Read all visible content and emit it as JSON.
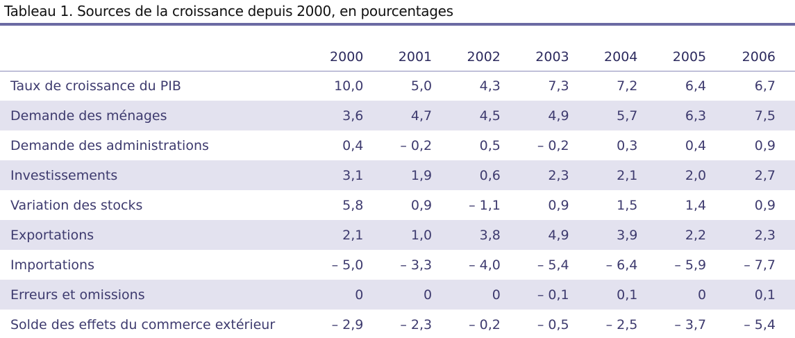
{
  "title": "Tableau 1. Sources de la croissance depuis 2000, en pourcentages",
  "columns": [
    "2000",
    "2001",
    "2002",
    "2003",
    "2004",
    "2005",
    "2006"
  ],
  "rows": [
    {
      "label": "Taux de croissance du PIB",
      "values": [
        "10,0",
        "5,0",
        "4,3",
        "7,3",
        "7,2",
        "6,4",
        "6,7"
      ]
    },
    {
      "label": "Demande des ménages",
      "values": [
        "3,6",
        "4,7",
        "4,5",
        "4,9",
        "5,7",
        "6,3",
        "7,5"
      ]
    },
    {
      "label": "Demande des administrations",
      "values": [
        "0,4",
        "– 0,2",
        "0,5",
        "– 0,2",
        "0,3",
        "0,4",
        "0,9"
      ]
    },
    {
      "label": "Investissements",
      "values": [
        "3,1",
        "1,9",
        "0,6",
        "2,3",
        "2,1",
        "2,0",
        "2,7"
      ]
    },
    {
      "label": "Variation des stocks",
      "values": [
        "5,8",
        "0,9",
        "– 1,1",
        "0,9",
        "1,5",
        "1,4",
        "0,9"
      ]
    },
    {
      "label": "Exportations",
      "values": [
        "2,1",
        "1,0",
        "3,8",
        "4,9",
        "3,9",
        "2,2",
        "2,3"
      ]
    },
    {
      "label": "Importations",
      "values": [
        "– 5,0",
        "– 3,3",
        "– 4,0",
        "– 5,4",
        "– 6,4",
        "– 5,9",
        "– 7,7"
      ]
    },
    {
      "label": "Erreurs et omissions",
      "values": [
        "0",
        "0",
        "0",
        "– 0,1",
        "0,1",
        "0",
        "0,1"
      ]
    },
    {
      "label": "Solde des effets du commerce extérieur",
      "values": [
        "– 2,9",
        "– 2,3",
        "– 0,2",
        "– 0,5",
        "– 2,5",
        "– 3,7",
        "– 5,4"
      ]
    }
  ],
  "colors": {
    "title_rule": "#6b6aa3",
    "row_shade": "#e3e2ef",
    "text": "#3d3a6e"
  }
}
